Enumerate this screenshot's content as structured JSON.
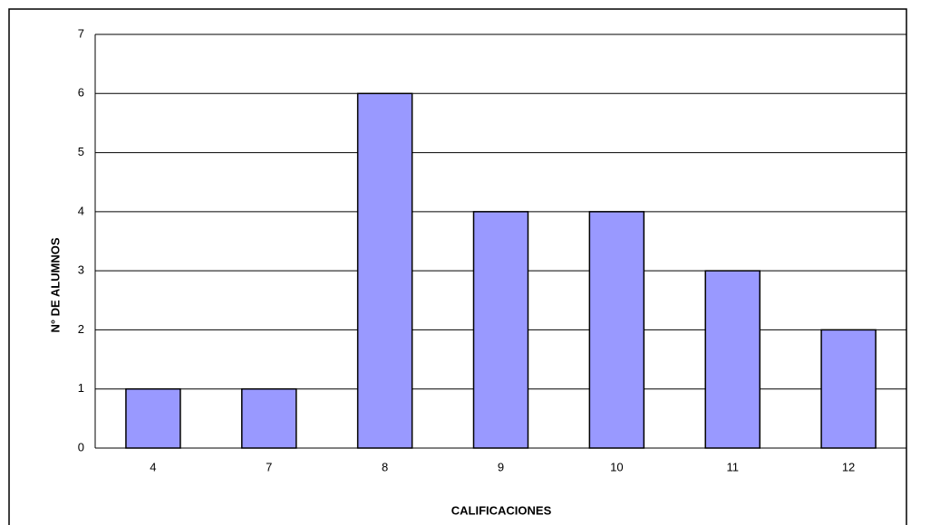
{
  "chart_data": {
    "type": "bar",
    "x_label": "CALIFICACIONES",
    "y_label": "N° DE ALUMNOS",
    "categories": [
      "4",
      "7",
      "8",
      "9",
      "10",
      "11",
      "12"
    ],
    "values": [
      1,
      1,
      6,
      4,
      4,
      3,
      2
    ],
    "color": "#9999ff",
    "ylim": [
      0,
      7
    ],
    "yticks": [
      0,
      1,
      2,
      3,
      4,
      5,
      6,
      7
    ],
    "grid": true
  }
}
